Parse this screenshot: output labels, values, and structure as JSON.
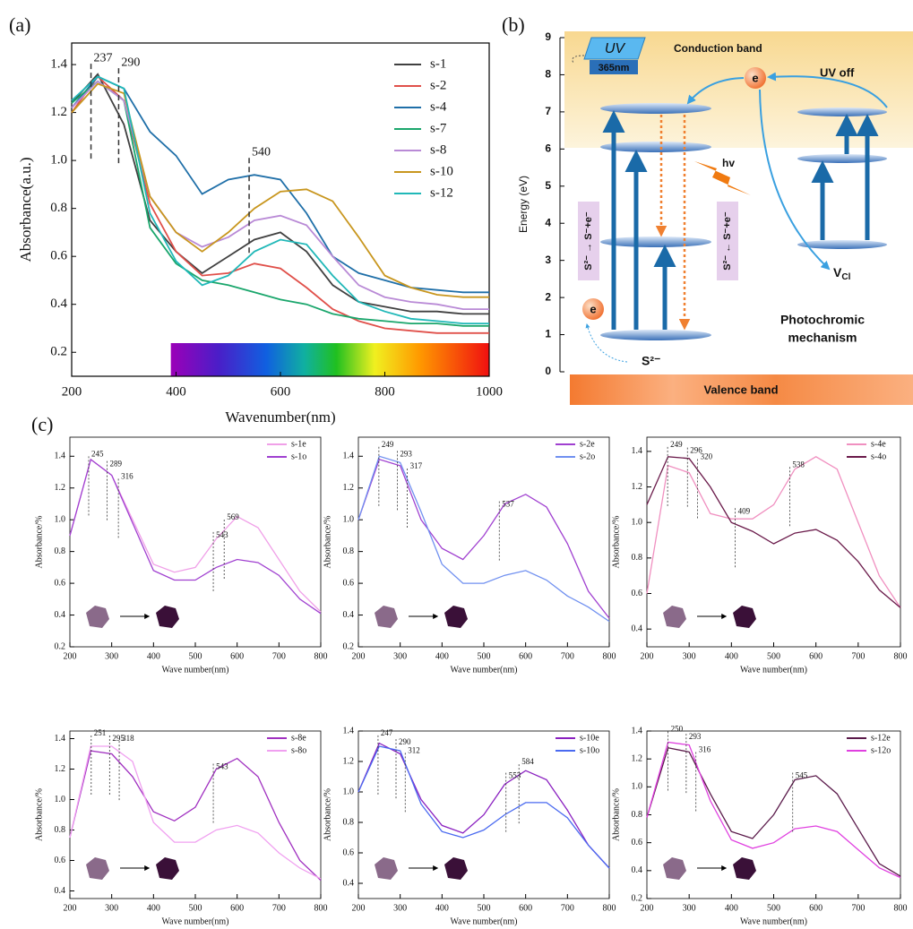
{
  "labels": [
    "(a)",
    "(b)",
    "(c)"
  ],
  "chart_data": [
    {
      "type": "line",
      "xlabel": "Wavenumber(nm)",
      "ylabel": "Absorbance(a.u.)",
      "x": [
        200,
        250,
        300,
        350,
        400,
        450,
        500,
        550,
        600,
        650,
        700,
        750,
        800,
        850,
        900,
        950,
        1000
      ],
      "xlim": [
        200,
        1000
      ],
      "xticks": [
        200,
        400,
        600,
        800,
        1000
      ],
      "ylim": [
        0.1,
        1.49
      ],
      "yticks": [
        0.2,
        0.4,
        0.6,
        0.8,
        {
          "value": 1,
          "label": "1.0"
        },
        1.2,
        1.4
      ],
      "legend": "upper right",
      "peaks": [
        237,
        290,
        540
      ],
      "series": [
        {
          "name": "s-1",
          "color": "#404040",
          "values": [
            1.24,
            1.36,
            1.15,
            0.75,
            0.62,
            0.53,
            0.6,
            0.67,
            0.7,
            0.62,
            0.48,
            0.41,
            0.39,
            0.37,
            0.37,
            0.36,
            0.36
          ]
        },
        {
          "name": "s-2",
          "color": "#e0504a",
          "values": [
            1.2,
            1.35,
            1.25,
            0.82,
            0.62,
            0.52,
            0.53,
            0.57,
            0.55,
            0.47,
            0.38,
            0.33,
            0.3,
            0.29,
            0.28,
            0.28,
            0.28
          ]
        },
        {
          "name": "s-4",
          "color": "#1f6fa8",
          "values": [
            1.22,
            1.35,
            1.3,
            1.12,
            1.02,
            0.86,
            0.92,
            0.94,
            0.92,
            0.78,
            0.6,
            0.53,
            0.5,
            0.47,
            0.46,
            0.45,
            0.45
          ]
        },
        {
          "name": "s-7",
          "color": "#1aa66c",
          "values": [
            1.24,
            1.33,
            1.25,
            0.72,
            0.57,
            0.5,
            0.48,
            0.45,
            0.42,
            0.4,
            0.36,
            0.34,
            0.33,
            0.32,
            0.32,
            0.31,
            0.31
          ]
        },
        {
          "name": "s-8",
          "color": "#b98ad6",
          "values": [
            1.22,
            1.33,
            1.25,
            0.85,
            0.7,
            0.64,
            0.68,
            0.75,
            0.77,
            0.73,
            0.6,
            0.48,
            0.43,
            0.41,
            0.4,
            0.38,
            0.38
          ]
        },
        {
          "name": "s-10",
          "color": "#c8961e",
          "values": [
            1.2,
            1.32,
            1.28,
            0.85,
            0.7,
            0.62,
            0.7,
            0.8,
            0.87,
            0.88,
            0.83,
            0.68,
            0.52,
            0.47,
            0.44,
            0.43,
            0.43
          ]
        },
        {
          "name": "s-12",
          "color": "#20b8b8",
          "values": [
            1.25,
            1.35,
            1.3,
            0.78,
            0.58,
            0.48,
            0.52,
            0.62,
            0.67,
            0.65,
            0.52,
            0.41,
            0.37,
            0.34,
            0.33,
            0.32,
            0.32
          ]
        }
      ]
    },
    {
      "type": "line",
      "xlabel": "Wave number(nm)",
      "ylabel": "Absorbance/%",
      "x": [
        200,
        250,
        300,
        350,
        400,
        450,
        500,
        550,
        600,
        650,
        700,
        750,
        800
      ],
      "xlim": [
        200,
        800
      ],
      "xticks": [
        200,
        300,
        400,
        500,
        600,
        700,
        800
      ],
      "ylim": [
        0.2,
        1.52
      ],
      "yticks": [
        0.2,
        0.4,
        0.6,
        0.8,
        {
          "value": 1,
          "label": "1.0"
        },
        1.2,
        1.4
      ],
      "legend": "upper right",
      "peaks": [
        245,
        289,
        316,
        543,
        569
      ],
      "series": [
        {
          "name": "s-1e",
          "color": "#f0a0e8",
          "values": [
            0.9,
            1.38,
            1.28,
            1.0,
            0.72,
            0.67,
            0.7,
            0.88,
            1.02,
            0.95,
            0.75,
            0.55,
            0.42
          ]
        },
        {
          "name": "s-1o",
          "color": "#a040d0",
          "values": [
            0.9,
            1.38,
            1.28,
            0.98,
            0.68,
            0.62,
            0.62,
            0.7,
            0.75,
            0.73,
            0.65,
            0.5,
            0.41
          ]
        }
      ]
    },
    {
      "type": "line",
      "xlabel": "Wave number(nm)",
      "ylabel": "Absorbance/%",
      "x": [
        200,
        250,
        300,
        350,
        400,
        450,
        500,
        550,
        600,
        650,
        700,
        750,
        800
      ],
      "xlim": [
        200,
        800
      ],
      "xticks": [
        200,
        300,
        400,
        500,
        600,
        700,
        800
      ],
      "ylim": [
        0.2,
        1.52
      ],
      "yticks": [
        0.2,
        0.4,
        0.6,
        0.8,
        {
          "value": 1,
          "label": "1.0"
        },
        1.2,
        1.4
      ],
      "legend": "upper right",
      "peaks": [
        249,
        293,
        317,
        537
      ],
      "series": [
        {
          "name": "s-2e",
          "color": "#a040d0",
          "values": [
            1.0,
            1.38,
            1.34,
            1.0,
            0.82,
            0.75,
            0.9,
            1.1,
            1.16,
            1.08,
            0.85,
            0.55,
            0.38
          ]
        },
        {
          "name": "s-2o",
          "color": "#7090f0",
          "values": [
            1.0,
            1.4,
            1.36,
            1.05,
            0.72,
            0.6,
            0.6,
            0.65,
            0.68,
            0.62,
            0.52,
            0.45,
            0.36
          ]
        }
      ]
    },
    {
      "type": "line",
      "xlabel": "Wave number(nm)",
      "ylabel": "Absorbance/%",
      "x": [
        200,
        250,
        300,
        350,
        400,
        450,
        500,
        550,
        600,
        650,
        700,
        750,
        800
      ],
      "xlim": [
        200,
        800
      ],
      "xticks": [
        200,
        300,
        400,
        500,
        600,
        700,
        800
      ],
      "ylim": [
        0.3,
        1.48
      ],
      "yticks": [
        0.4,
        0.6,
        0.8,
        {
          "value": 1,
          "label": "1.0"
        },
        1.2,
        1.4
      ],
      "legend": "upper right",
      "peaks": [
        249,
        296,
        320,
        409,
        538
      ],
      "series": [
        {
          "name": "s-4e",
          "color": "#f090c0",
          "values": [
            0.6,
            1.32,
            1.28,
            1.05,
            1.02,
            1.02,
            1.1,
            1.3,
            1.37,
            1.3,
            1.0,
            0.7,
            0.52
          ]
        },
        {
          "name": "s-4o",
          "color": "#6a1a4a",
          "values": [
            1.1,
            1.37,
            1.36,
            1.2,
            1.0,
            0.95,
            0.88,
            0.94,
            0.96,
            0.9,
            0.78,
            0.62,
            0.52
          ]
        }
      ]
    },
    {
      "type": "line",
      "xlabel": "Wave number(nm)",
      "ylabel": "Absorbance/%",
      "x": [
        200,
        250,
        300,
        350,
        400,
        450,
        500,
        550,
        600,
        650,
        700,
        750,
        800
      ],
      "xlim": [
        200,
        800
      ],
      "xticks": [
        200,
        300,
        400,
        500,
        600,
        700,
        800
      ],
      "ylim": [
        0.35,
        1.45
      ],
      "yticks": [
        0.4,
        0.6,
        0.8,
        {
          "value": 1,
          "label": "1.0"
        },
        1.2,
        1.4
      ],
      "legend": "upper right",
      "peaks": [
        251,
        295,
        318,
        543
      ],
      "series": [
        {
          "name": "s-8e",
          "color": "#a030c0",
          "values": [
            0.75,
            1.32,
            1.3,
            1.15,
            0.92,
            0.86,
            0.95,
            1.2,
            1.27,
            1.15,
            0.85,
            0.6,
            0.47
          ]
        },
        {
          "name": "s-8o",
          "color": "#f0a0f0",
          "values": [
            0.75,
            1.35,
            1.35,
            1.25,
            0.85,
            0.72,
            0.72,
            0.8,
            0.83,
            0.78,
            0.65,
            0.55,
            0.48
          ]
        }
      ]
    },
    {
      "type": "line",
      "xlabel": "Wave number(nm)",
      "ylabel": "Absorbance/%",
      "x": [
        200,
        250,
        300,
        350,
        400,
        450,
        500,
        550,
        600,
        650,
        700,
        750,
        800
      ],
      "xlim": [
        200,
        800
      ],
      "xticks": [
        200,
        300,
        400,
        500,
        600,
        700,
        800
      ],
      "ylim": [
        0.3,
        1.4
      ],
      "yticks": [
        0.4,
        0.6,
        0.8,
        {
          "value": 1,
          "label": "1.0"
        },
        1.2,
        1.4
      ],
      "legend": "upper right",
      "peaks": [
        247,
        290,
        312,
        553,
        584
      ],
      "series": [
        {
          "name": "s-10e",
          "color": "#8a20c0",
          "values": [
            1.0,
            1.32,
            1.25,
            0.95,
            0.78,
            0.73,
            0.85,
            1.05,
            1.14,
            1.08,
            0.88,
            0.65,
            0.5
          ]
        },
        {
          "name": "s-10o",
          "color": "#4a6af0",
          "values": [
            1.0,
            1.3,
            1.27,
            0.92,
            0.74,
            0.7,
            0.75,
            0.85,
            0.93,
            0.93,
            0.83,
            0.65,
            0.5
          ]
        }
      ]
    },
    {
      "type": "line",
      "xlabel": "Wave number(nm)",
      "ylabel": "Absorbance/%",
      "x": [
        200,
        250,
        300,
        350,
        400,
        450,
        500,
        550,
        600,
        650,
        700,
        750,
        800
      ],
      "xlim": [
        200,
        800
      ],
      "xticks": [
        200,
        300,
        400,
        500,
        600,
        700,
        800
      ],
      "ylim": [
        0.2,
        1.4
      ],
      "yticks": [
        0.2,
        0.4,
        0.6,
        0.8,
        {
          "value": 1,
          "label": "1.0"
        },
        1.2,
        1.4
      ],
      "legend": "upper right",
      "peaks": [
        250,
        293,
        316,
        545
      ],
      "series": [
        {
          "name": "s-12e",
          "color": "#5a1a4a",
          "values": [
            0.78,
            1.28,
            1.25,
            0.95,
            0.68,
            0.63,
            0.8,
            1.05,
            1.08,
            0.95,
            0.7,
            0.45,
            0.36
          ]
        },
        {
          "name": "s-12o",
          "color": "#e040e0",
          "values": [
            0.78,
            1.32,
            1.3,
            0.9,
            0.62,
            0.56,
            0.6,
            0.7,
            0.72,
            0.68,
            0.55,
            0.42,
            0.35
          ]
        }
      ]
    }
  ],
  "diagram": {
    "uv": "UV",
    "uv_wavelength": "365nm",
    "conduction_band": "Conduction band",
    "uv_off": "UV off",
    "electron": "e",
    "hv": "hv",
    "energy_label": "Energy (eV)",
    "ylim": [
      0,
      9
    ],
    "yticks": [
      0,
      1,
      2,
      3,
      4,
      5,
      6,
      7,
      8,
      9
    ],
    "left_reaction": "S²⁻ → S⁻+e⁻",
    "right_reaction": "S²⁻ ← S⁻+e⁻",
    "vacancy": "V",
    "vacancy_sub": "Cl",
    "electron2": "e",
    "sulfide": "S²⁻",
    "caption": [
      "Photochromic",
      "mechanism"
    ],
    "valence_band": "Valence band"
  }
}
